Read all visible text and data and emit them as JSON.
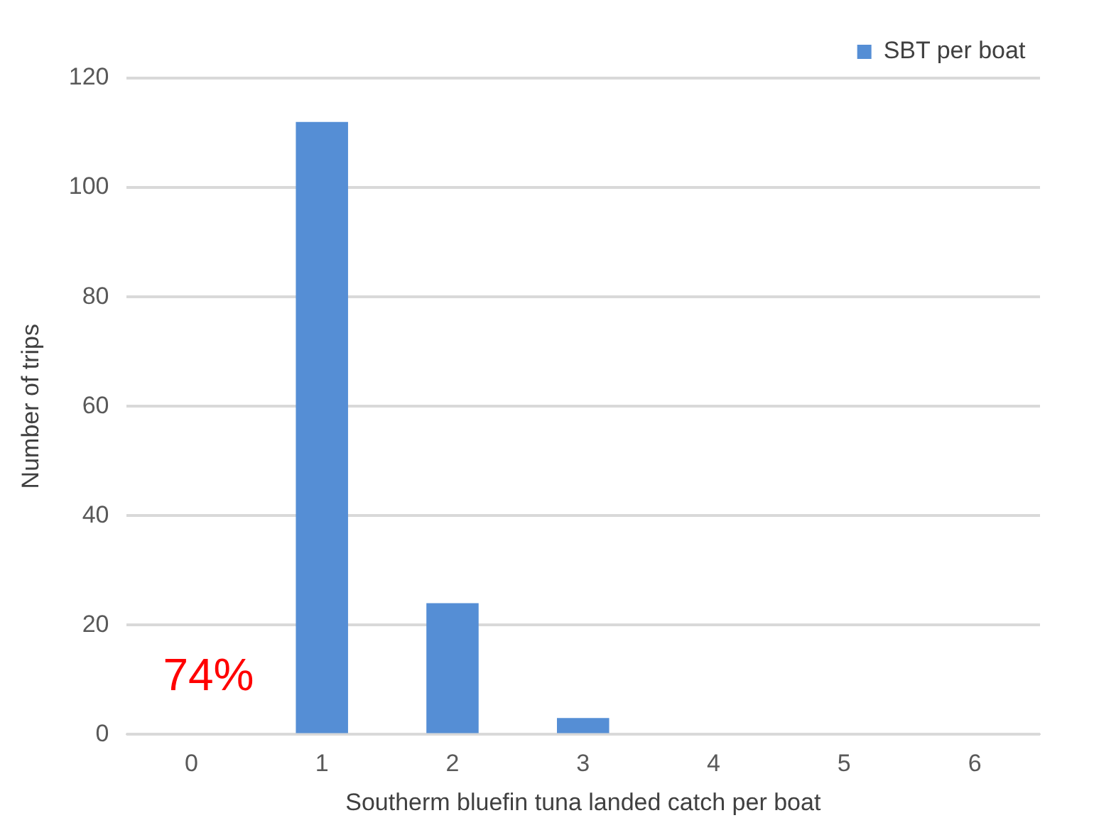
{
  "chart_data": {
    "type": "bar",
    "xlabel": "Southerm bluefin tuna landed catch per boat",
    "ylabel": "Number of trips",
    "categories": [
      "0",
      "1",
      "2",
      "3",
      "4",
      "5",
      "6"
    ],
    "series": [
      {
        "name": "SBT per boat",
        "color": "#558ed5",
        "values": [
          0,
          112,
          24,
          3,
          0,
          0,
          0
        ]
      }
    ],
    "ylim": [
      0,
      120
    ],
    "yticks": [
      0,
      20,
      40,
      60,
      80,
      100,
      120
    ],
    "grid": "y",
    "legend": "top right",
    "annotations": [
      "74%"
    ]
  }
}
